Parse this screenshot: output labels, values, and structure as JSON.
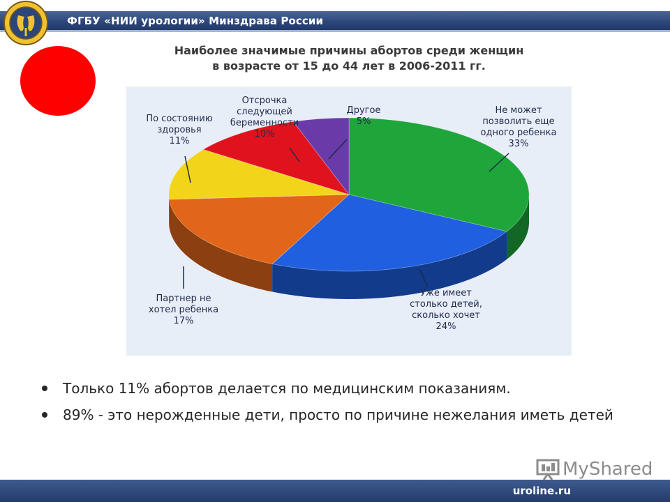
{
  "header": {
    "title": "ФГБУ «НИИ урологии» Минздрава России"
  },
  "chart_title": {
    "line1": "Наиболее значимые причины абортов среди женщин",
    "line2": "в возрасте от 15 до 44 лет в 2006-2011 гг."
  },
  "chart_data": {
    "type": "pie",
    "title": "Наиболее значимые причины абортов среди женщин в возрасте от 15 до 44 лет в 2006-2011 гг.",
    "slices": [
      {
        "label": [
          "Не может",
          "позволить еще",
          "одного ребенка"
        ],
        "value": 33,
        "value_label": "33%",
        "color": "#1ea63a"
      },
      {
        "label": [
          "Уже имеет",
          "столько детей,",
          "сколько хочет"
        ],
        "value": 24,
        "value_label": "24%",
        "color": "#1f5fe0"
      },
      {
        "label": [
          "Партнер не",
          "хотел ребенка"
        ],
        "value": 17,
        "value_label": "17%",
        "color": "#e2661a"
      },
      {
        "label": [
          "По состоянию",
          "здоровья"
        ],
        "value": 11,
        "value_label": "11%",
        "color": "#f2d51a"
      },
      {
        "label": [
          "Отсрочка",
          "следующей",
          "беременности"
        ],
        "value": 10,
        "value_label": "10%",
        "color": "#e0121e"
      },
      {
        "label": [
          "Другое"
        ],
        "value": 5,
        "value_label": "5%",
        "color": "#6a3aa8"
      }
    ]
  },
  "bullets": [
    "Только 11% абортов делается по медицинским показаниям.",
    "89% - это нерожденные дети, просто по причине нежелания иметь детей"
  ],
  "watermark": {
    "text": "MyShared"
  },
  "footer": {
    "site": "uroline.ru"
  },
  "colors": {
    "header_bar": "#2c4679",
    "red_marker": "#ff0000",
    "chart_background": "#e8eef7"
  }
}
